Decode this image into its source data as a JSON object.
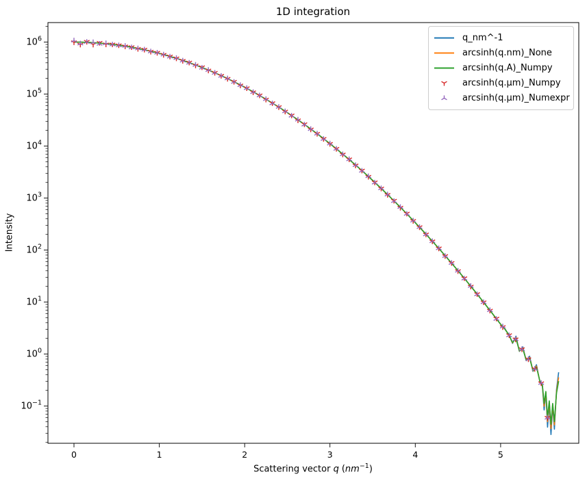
{
  "chart": {
    "title": "1D integration",
    "ylabel": "Intensity",
    "xlabel_prefix": "Scattering vector",
    "xlabel_symbol": "q",
    "xlabel_open": "(",
    "xlabel_unit": "nm",
    "xlabel_exponent": "−1",
    "xlabel_close": ")"
  },
  "legend": {
    "items": [
      {
        "label": "q_nm^-1",
        "color": "#1f77b4",
        "glyph": "line"
      },
      {
        "label": "arcsinh(q.nm)_None",
        "color": "#ff7f0e",
        "glyph": "line"
      },
      {
        "label": "arcsinh(q.A)_Numpy",
        "color": "#2ca02c",
        "glyph": "line"
      },
      {
        "label": "arcsinh(q.µm)_Numpy",
        "color": "#d62728",
        "glyph": "tri_down"
      },
      {
        "label": "arcsinh(q.µm)_Numexpr",
        "color": "#9467bd",
        "glyph": "tri_up"
      }
    ]
  },
  "chart_data": {
    "type": "line",
    "title": "1D integration",
    "xlabel": "Scattering vector q (nm^-1)",
    "ylabel": "Intensity",
    "x_scale": "linear",
    "y_scale": "log",
    "xlim": [
      -0.305,
      5.916
    ],
    "ylim_log10": [
      -1.716,
      6.375
    ],
    "xticks": [
      0,
      1,
      2,
      3,
      4,
      5
    ],
    "ytick_exponents": [
      6,
      5,
      4,
      3,
      2,
      1,
      0,
      -1
    ],
    "grid": false,
    "legend_position": "upper right",
    "model_note": "I(q) ~ 1e6 * exp(-q^2/2); log10(I) = 6 - 0.2171*q^2, noisy below I~1",
    "points_q_log10I": [
      [
        0.0,
        6.0
      ],
      [
        0.1,
        5.998
      ],
      [
        0.2,
        5.991
      ],
      [
        0.3,
        5.98
      ],
      [
        0.4,
        5.965
      ],
      [
        0.5,
        5.946
      ],
      [
        0.6,
        5.922
      ],
      [
        0.7,
        5.894
      ],
      [
        0.8,
        5.861
      ],
      [
        0.9,
        5.824
      ],
      [
        1.0,
        5.783
      ],
      [
        1.1,
        5.737
      ],
      [
        1.2,
        5.687
      ],
      [
        1.3,
        5.633
      ],
      [
        1.4,
        5.574
      ],
      [
        1.5,
        5.512
      ],
      [
        1.6,
        5.444
      ],
      [
        1.7,
        5.373
      ],
      [
        1.8,
        5.297
      ],
      [
        1.9,
        5.216
      ],
      [
        2.0,
        5.132
      ],
      [
        2.1,
        5.043
      ],
      [
        2.2,
        4.949
      ],
      [
        2.3,
        4.852
      ],
      [
        2.4,
        4.75
      ],
      [
        2.5,
        4.643
      ],
      [
        2.6,
        4.532
      ],
      [
        2.7,
        4.417
      ],
      [
        2.8,
        4.298
      ],
      [
        2.9,
        4.174
      ],
      [
        3.0,
        4.046
      ],
      [
        3.1,
        3.914
      ],
      [
        3.2,
        3.777
      ],
      [
        3.3,
        3.636
      ],
      [
        3.4,
        3.49
      ],
      [
        3.5,
        3.341
      ],
      [
        3.6,
        3.186
      ],
      [
        3.7,
        3.028
      ],
      [
        3.8,
        2.865
      ],
      [
        3.9,
        2.698
      ],
      [
        4.0,
        2.526
      ],
      [
        4.1,
        2.351
      ],
      [
        4.2,
        2.17
      ],
      [
        4.3,
        1.986
      ],
      [
        4.4,
        1.797
      ],
      [
        4.5,
        1.604
      ],
      [
        4.6,
        1.406
      ],
      [
        4.7,
        1.204
      ],
      [
        4.8,
        0.998
      ],
      [
        4.9,
        0.788
      ],
      [
        5.0,
        0.573
      ],
      [
        5.05,
        0.48
      ],
      [
        5.1,
        0.36
      ],
      [
        5.14,
        0.22
      ],
      [
        5.18,
        0.3
      ],
      [
        5.22,
        0.06
      ],
      [
        5.26,
        0.1
      ],
      [
        5.3,
        -0.12
      ],
      [
        5.34,
        -0.08
      ],
      [
        5.38,
        -0.32
      ],
      [
        5.42,
        -0.25
      ],
      [
        5.46,
        -0.52
      ],
      [
        5.49,
        -0.6
      ],
      [
        5.51,
        -0.95
      ],
      [
        5.53,
        -0.72
      ],
      [
        5.55,
        -1.22
      ],
      [
        5.57,
        -0.9
      ],
      [
        5.59,
        -1.35
      ],
      [
        5.61,
        -0.95
      ],
      [
        5.63,
        -1.3
      ],
      [
        5.655,
        -0.75
      ],
      [
        5.68,
        -0.52
      ]
    ],
    "series": [
      {
        "name": "q_nm^-1",
        "type": "line",
        "color": "#1f77b4",
        "tail_deviation_scale": 1.35
      },
      {
        "name": "arcsinh(q.nm)_None",
        "type": "line",
        "color": "#ff7f0e",
        "tail_deviation_scale": 1.15
      },
      {
        "name": "arcsinh(q.A)_Numpy",
        "type": "line",
        "color": "#2ca02c",
        "tail_deviation_scale": 1.0
      },
      {
        "name": "arcsinh(q.µm)_Numpy",
        "type": "markers",
        "marker": "tri_down",
        "color": "#d62728"
      },
      {
        "name": "arcsinh(q.µm)_Numexpr",
        "type": "markers",
        "marker": "tri_up",
        "color": "#9467bd"
      }
    ],
    "marker_q_step": 0.075,
    "marker_q_max": 5.62
  }
}
